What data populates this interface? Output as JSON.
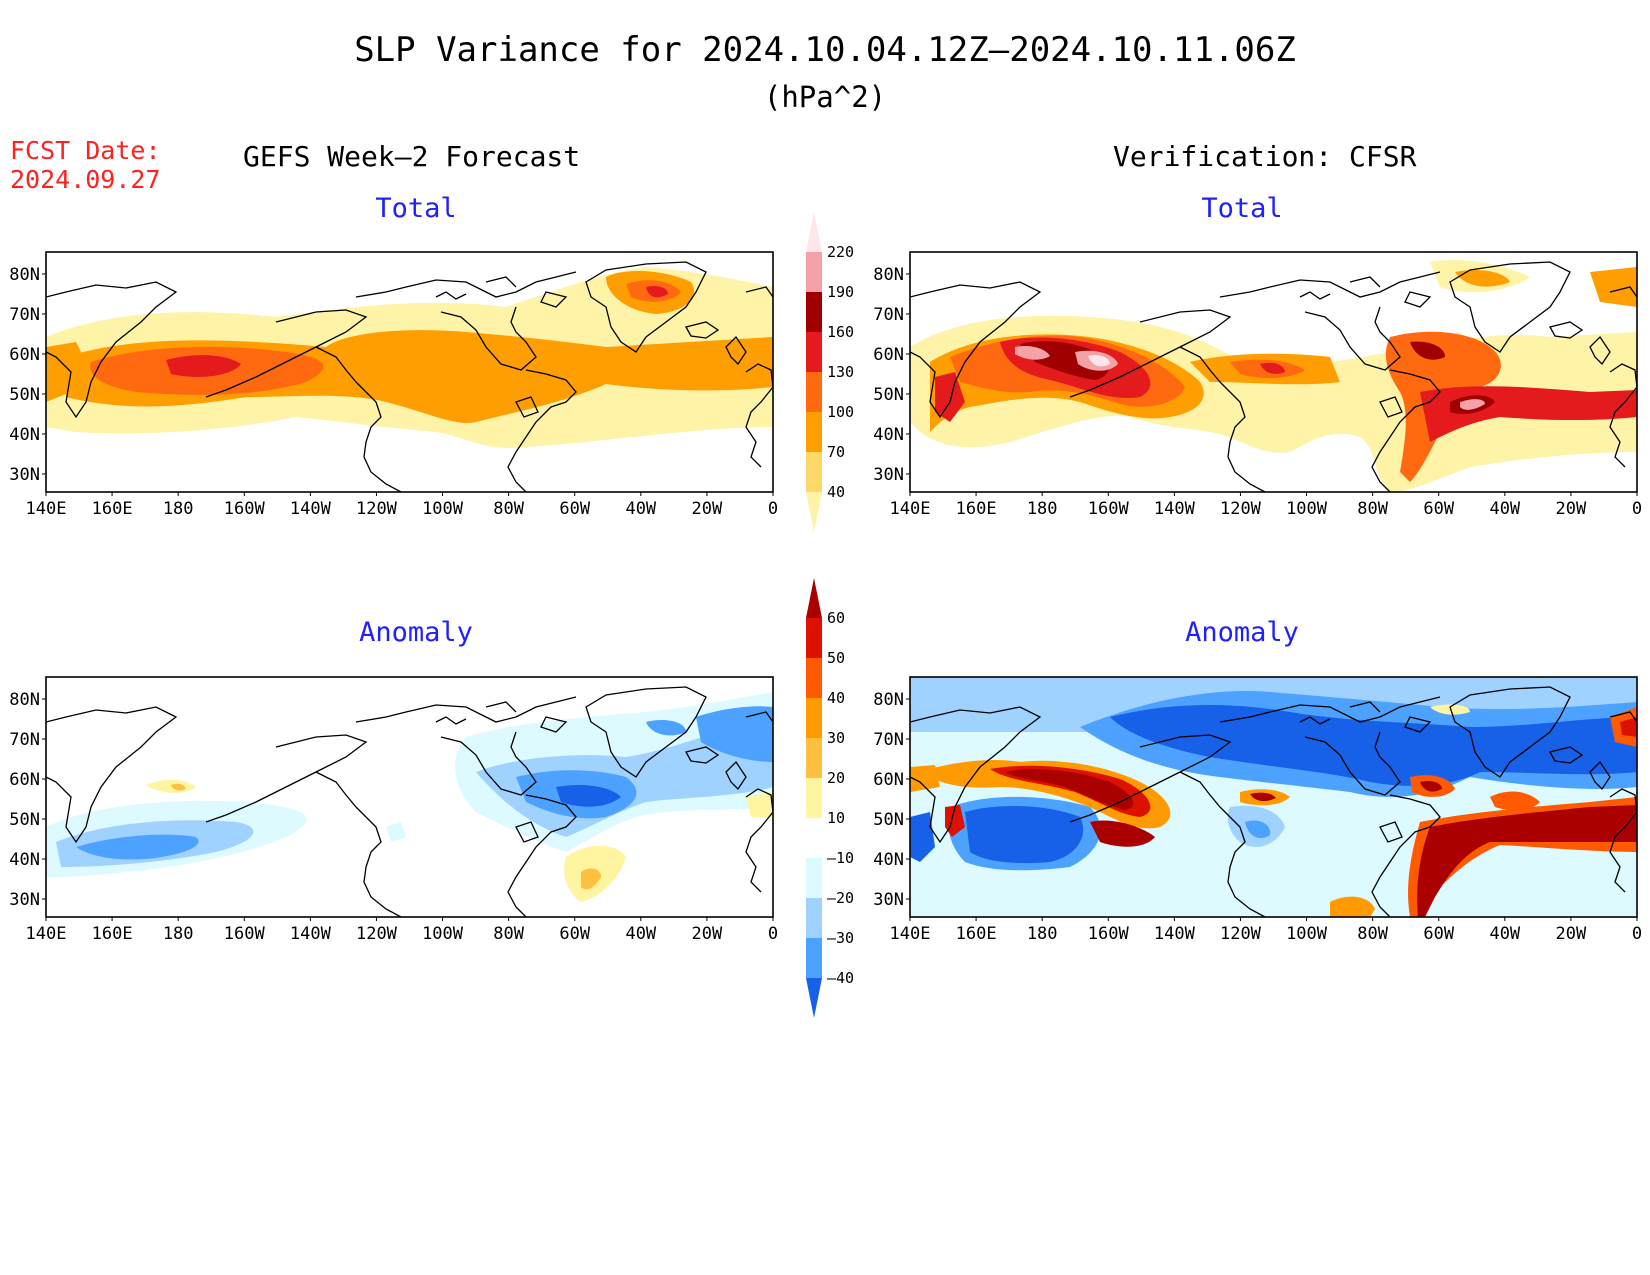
{
  "header": {
    "title": "SLP Variance for 2024.10.04.12Z–2024.10.11.06Z",
    "units": "(hPa^2)",
    "fcst_label": "FCST Date:",
    "fcst_date": "2024.09.27",
    "left_column": "GEFS Week–2 Forecast",
    "right_column": "Verification: CFSR"
  },
  "panels": [
    {
      "id": "fcst-total",
      "subtitle": "Total",
      "field": "total",
      "source": "forecast"
    },
    {
      "id": "verif-total",
      "subtitle": "Total",
      "field": "total",
      "source": "verification"
    },
    {
      "id": "fcst-anom",
      "subtitle": "Anomaly",
      "field": "anomaly",
      "source": "forecast"
    },
    {
      "id": "verif-anom",
      "subtitle": "Anomaly",
      "field": "anomaly",
      "source": "verification"
    }
  ],
  "axes": {
    "lat_labels": [
      "80N",
      "70N",
      "60N",
      "50N",
      "40N",
      "30N"
    ],
    "lon_labels": [
      "140E",
      "160E",
      "180",
      "160W",
      "140W",
      "120W",
      "100W",
      "80W",
      "60W",
      "40W",
      "20W",
      "0"
    ]
  },
  "colorbars": {
    "total": {
      "labels": [
        "220",
        "190",
        "160",
        "130",
        "100",
        "70",
        "40"
      ],
      "colors": [
        "#ffe6ea",
        "#f4a2a8",
        "#a00000",
        "#e41a1c",
        "#ff6a10",
        "#ff9e00",
        "#ffd86a",
        "#fff3a8"
      ]
    },
    "anomaly": {
      "labels": [
        "60",
        "50",
        "40",
        "30",
        "20",
        "10",
        "–10",
        "–20",
        "–30",
        "–40"
      ],
      "colors": [
        "#aa0000",
        "#dd1100",
        "#ff5a00",
        "#ff9a00",
        "#ffc040",
        "#fff4a0",
        "#ffffff",
        "#dcfaff",
        "#a0d2ff",
        "#4ea2ff",
        "#1760e8"
      ]
    }
  },
  "chart_data": {
    "type": "heatmap",
    "variable": "SLP Variance",
    "units": "hPa^2",
    "lat_range": [
      "25N",
      "85N"
    ],
    "lon_range": [
      "140E",
      "0"
    ],
    "total_levels": [
      40,
      70,
      100,
      130,
      160,
      190,
      220
    ],
    "anomaly_levels": [
      -40,
      -30,
      -20,
      -10,
      10,
      20,
      30,
      40,
      50,
      60
    ]
  }
}
